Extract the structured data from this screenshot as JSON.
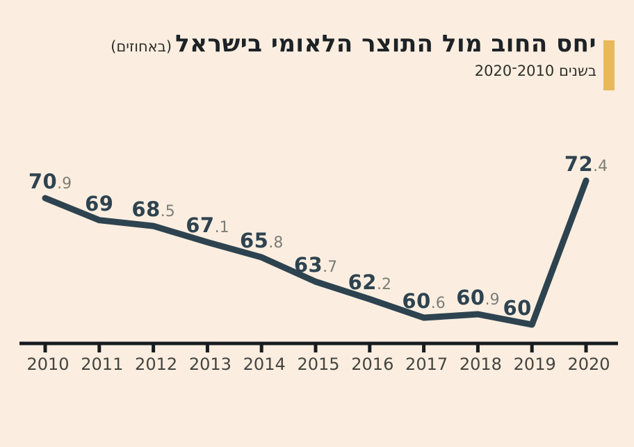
{
  "title": {
    "main": "יחס החוב מול התוצר הלאומי בישראל",
    "unit_note": "(באחוזים)",
    "subtitle": "בשנים 2010־2020"
  },
  "colors": {
    "background": "#FBEEE0",
    "line": "#2E4350",
    "value_int": "#2E4350",
    "value_dec": "#7D7D77",
    "axis": "#181C20",
    "tick": "#181C20",
    "year_label": "#44443F",
    "accent_bar": "#E8B95B",
    "title_text": "#1D2226",
    "subtitle_text": "#2E2E29"
  },
  "chart_data": {
    "type": "line",
    "title": "יחס החוב מול התוצר הלאומי בישראל (באחוזים)",
    "subtitle": "בשנים 2010־2020",
    "x": [
      2010,
      2011,
      2012,
      2013,
      2014,
      2015,
      2016,
      2017,
      2018,
      2019,
      2020
    ],
    "values": [
      70.9,
      69,
      68.5,
      67.1,
      65.8,
      63.7,
      62.2,
      60.6,
      60.9,
      60,
      72.4
    ],
    "series_name": "debt-to-gdp-ratio-percent",
    "xlabel": "",
    "ylabel": "",
    "ylim": [
      58,
      74
    ],
    "grid": "off",
    "y_axis_visible": false,
    "data_labels": "on",
    "legend": "none"
  }
}
